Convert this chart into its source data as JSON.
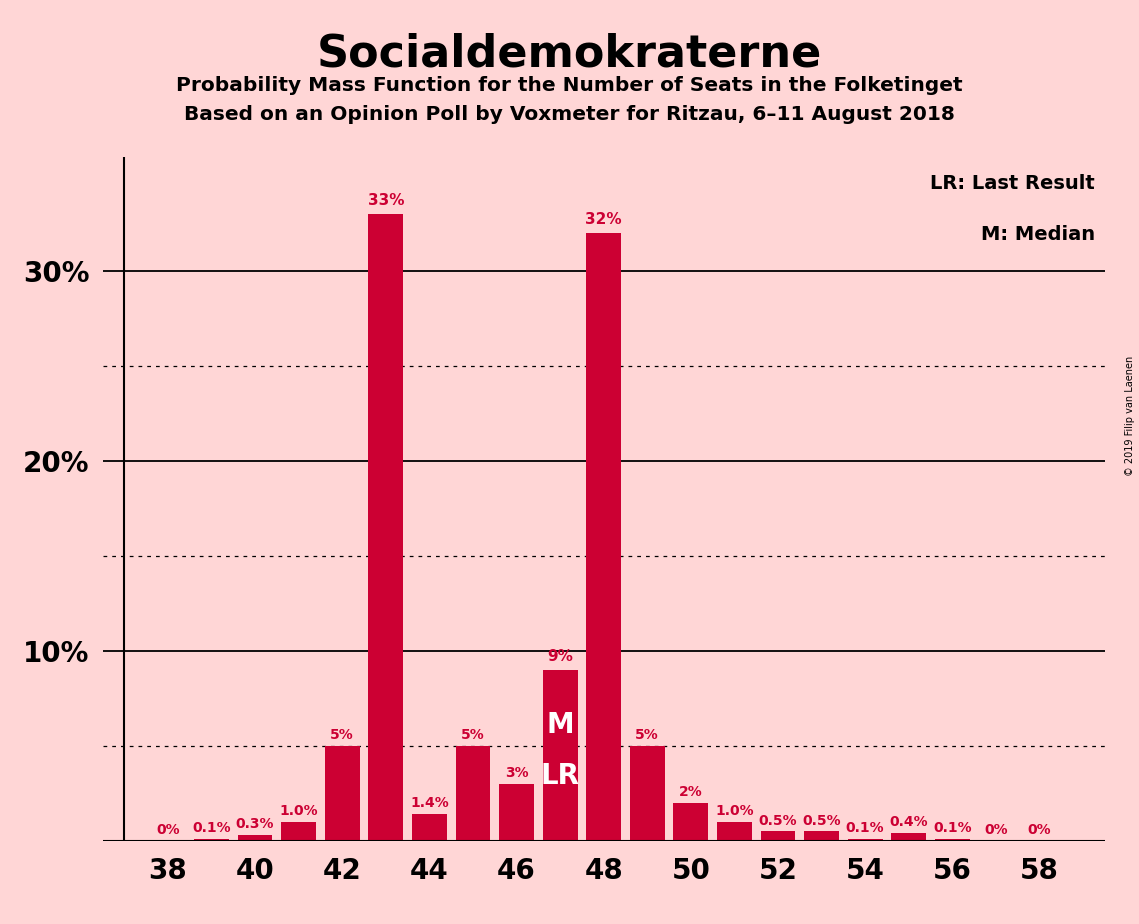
{
  "title": "Socialdemokraterne",
  "subtitle1": "Probability Mass Function for the Number of Seats in the Folketinget",
  "subtitle2": "Based on an Opinion Poll by Voxmeter for Ritzau, 6–11 August 2018",
  "copyright": "© 2019 Filip van Laenen",
  "legend_lr": "LR: Last Result",
  "legend_m": "M: Median",
  "background_color": "#FFD6D6",
  "bar_color": "#CC0033",
  "seats": [
    38,
    39,
    40,
    41,
    42,
    43,
    44,
    45,
    46,
    47,
    48,
    49,
    50,
    51,
    52,
    53,
    54,
    55,
    56,
    57,
    58
  ],
  "values": [
    0.0,
    0.1,
    0.3,
    1.0,
    5.0,
    33.0,
    1.4,
    5.0,
    3.0,
    9.0,
    32.0,
    5.0,
    2.0,
    1.0,
    0.5,
    0.5,
    0.1,
    0.4,
    0.1,
    0.0,
    0.0
  ],
  "labels": [
    "0%",
    "0.1%",
    "0.3%",
    "1.0%",
    "5%",
    "33%",
    "1.4%",
    "5%",
    "3%",
    "9%",
    "32%",
    "5%",
    "2%",
    "1.0%",
    "0.5%",
    "0.5%",
    "0.1%",
    "0.4%",
    "0.1%",
    "0%",
    "0%"
  ],
  "median_seat": 47,
  "last_result_seat": 47,
  "ylim": [
    0,
    36
  ],
  "xlim": [
    36.5,
    59.5
  ],
  "xticks": [
    38,
    40,
    42,
    44,
    46,
    48,
    50,
    52,
    54,
    56,
    58
  ],
  "solid_gridlines": [
    10,
    20,
    30
  ],
  "dotted_gridlines": [
    5,
    15,
    25
  ],
  "bar_width": 0.8
}
